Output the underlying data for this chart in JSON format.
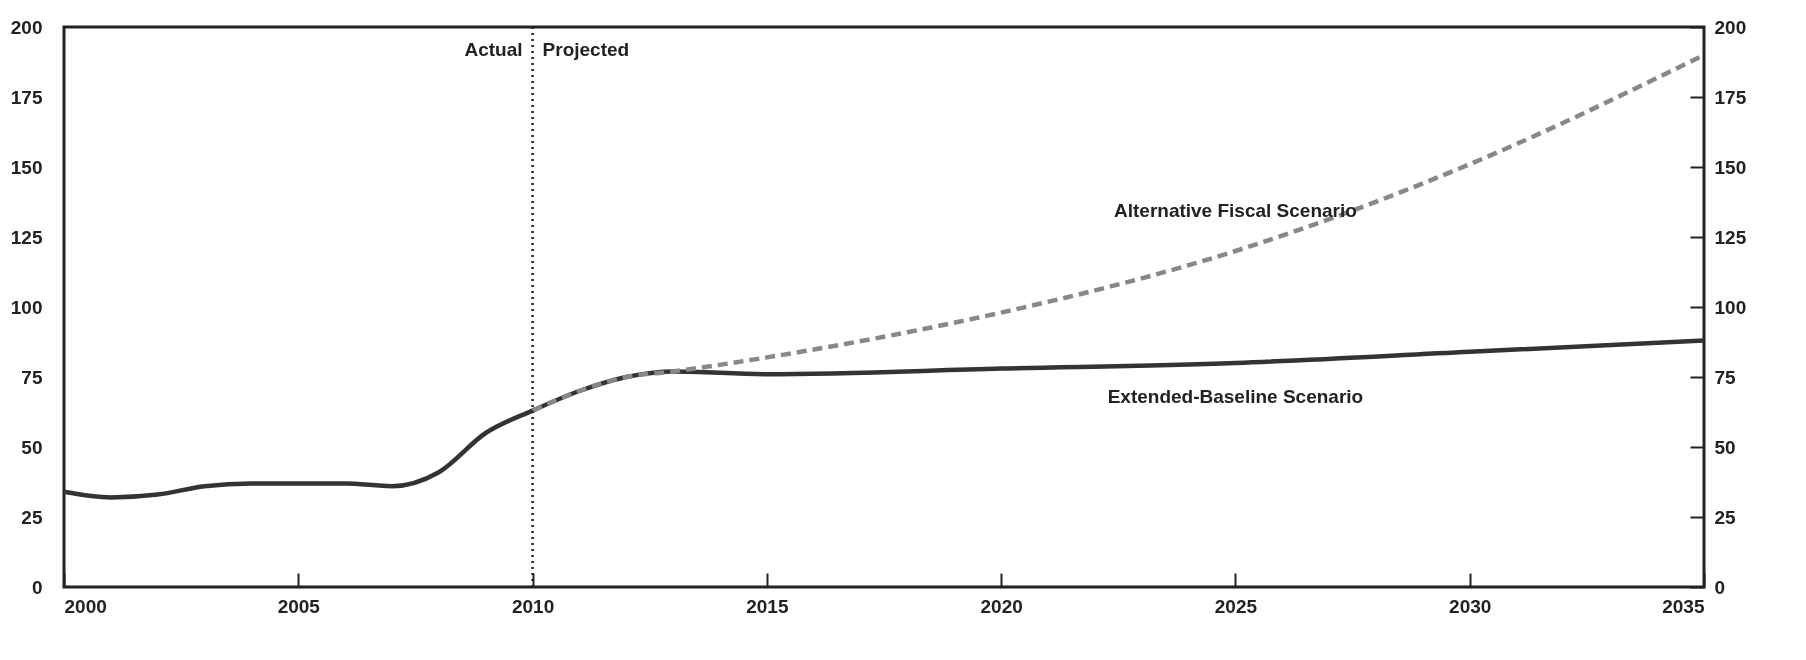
{
  "chart_data": {
    "type": "line",
    "series": [
      {
        "name": "Extended-Baseline Scenario",
        "color": "#333333",
        "line_style": "solid",
        "x": [
          2000,
          2001,
          2002,
          2003,
          2004,
          2005,
          2006,
          2007,
          2008,
          2009,
          2010,
          2011,
          2012,
          2013,
          2015,
          2020,
          2025,
          2030,
          2035
        ],
        "values": [
          34,
          32,
          33,
          36,
          37,
          37,
          37,
          36,
          41,
          55,
          63,
          70,
          75,
          77,
          76,
          78,
          80,
          84,
          88
        ]
      },
      {
        "name": "Alternative Fiscal Scenario",
        "color": "#888888",
        "line_style": "dashed",
        "x": [
          2010,
          2011,
          2012,
          2013,
          2015,
          2018,
          2020,
          2025,
          2030,
          2035
        ],
        "values": [
          63,
          70,
          75,
          77,
          82,
          91,
          98,
          120,
          151,
          190
        ]
      }
    ],
    "xlim": [
      2000,
      2035
    ],
    "xticks": [
      2000,
      2005,
      2010,
      2015,
      2020,
      2025,
      2030,
      2035
    ],
    "ylim": [
      0,
      200
    ],
    "yticks": [
      0,
      25,
      50,
      75,
      100,
      125,
      150,
      175,
      200
    ],
    "y2lim": [
      0,
      200
    ],
    "y2ticks": [
      0,
      25,
      50,
      75,
      100,
      125,
      150,
      175,
      200
    ],
    "ref_lines": [
      {
        "axis": "x",
        "value": 2010,
        "line_style": "dotted",
        "color": "#222222"
      }
    ],
    "annotations": [
      "Actual",
      "Projected"
    ],
    "grid": false,
    "legend": false,
    "marker": "none"
  }
}
